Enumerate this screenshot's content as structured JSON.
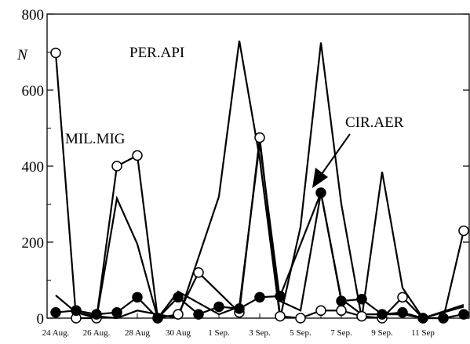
{
  "chart_data": {
    "type": "line",
    "ylabel": "N",
    "ylim": [
      0,
      800
    ],
    "yticks": [
      "0",
      "200",
      "400",
      "600",
      "800"
    ],
    "categories": [
      "24 Aug.",
      "26 Aug.",
      "28 Aug",
      "30 Aug",
      "1 Sep.",
      "3 Sep.",
      "5 Sep.",
      "7 Sep.",
      "9 Sep.",
      "11 Sep"
    ],
    "grid": false,
    "series": [
      {
        "name": "PER.API",
        "marker": "none",
        "points": [
          [
            0,
            60
          ],
          [
            0.5,
            15
          ],
          [
            1,
            5
          ],
          [
            1.5,
            0
          ],
          [
            2,
            20
          ],
          [
            3,
            0
          ],
          [
            4,
            320
          ],
          [
            4.5,
            730
          ],
          [
            5,
            420
          ],
          [
            5.5,
            0
          ],
          [
            6,
            240
          ],
          [
            6.5,
            725
          ],
          [
            7,
            300
          ],
          [
            7.5,
            0
          ],
          [
            8,
            385
          ],
          [
            8.5,
            80
          ],
          [
            9,
            0
          ],
          [
            10,
            35
          ]
        ]
      },
      {
        "name": "MIL.MIG",
        "marker": "none",
        "points": [
          [
            0.5,
            15
          ],
          [
            1,
            0
          ],
          [
            1.5,
            315
          ],
          [
            2,
            195
          ],
          [
            2.5,
            0
          ],
          [
            3,
            70
          ],
          [
            4,
            10
          ],
          [
            4.5,
            30
          ],
          [
            5,
            460
          ],
          [
            5.5,
            45
          ],
          [
            6,
            20
          ],
          [
            6.5,
            330
          ],
          [
            7,
            50
          ],
          [
            7.5,
            10
          ],
          [
            8,
            10
          ],
          [
            8.5,
            10
          ],
          [
            9,
            0
          ],
          [
            10,
            30
          ]
        ]
      },
      {
        "name": "",
        "marker": "open-circle",
        "points": [
          [
            0,
            698
          ],
          [
            0.5,
            0
          ],
          [
            1,
            0
          ],
          [
            1.5,
            400
          ],
          [
            2,
            428
          ],
          [
            2.5,
            0
          ],
          [
            3,
            10
          ],
          [
            3.5,
            120
          ],
          [
            4.5,
            15
          ],
          [
            5,
            475
          ],
          [
            5.5,
            5
          ],
          [
            6,
            0
          ],
          [
            6.5,
            20
          ],
          [
            7,
            20
          ],
          [
            7.5,
            5
          ],
          [
            8,
            0
          ],
          [
            8.5,
            55
          ],
          [
            9,
            0
          ],
          [
            9.5,
            0
          ],
          [
            10,
            230
          ]
        ]
      },
      {
        "name": "CIR.AER",
        "marker": "filled-circle",
        "points": [
          [
            0,
            15
          ],
          [
            0.5,
            20
          ],
          [
            1,
            10
          ],
          [
            1.5,
            15
          ],
          [
            2,
            55
          ],
          [
            2.5,
            0
          ],
          [
            3,
            55
          ],
          [
            3.5,
            10
          ],
          [
            4,
            30
          ],
          [
            4.5,
            25
          ],
          [
            5,
            55
          ],
          [
            5.5,
            58
          ],
          [
            6.5,
            330
          ],
          [
            7,
            45
          ],
          [
            7.5,
            50
          ],
          [
            8,
            10
          ],
          [
            8.5,
            15
          ],
          [
            9,
            0
          ],
          [
            9.5,
            0
          ],
          [
            10,
            10
          ]
        ]
      }
    ],
    "annotations": [
      {
        "text": "PER.API",
        "target_series": "PER.API"
      },
      {
        "text": "MIL.MIG",
        "target_series": "MIL.MIG"
      },
      {
        "text": "CIR.AER",
        "target_series": "CIR.AER",
        "arrow": true
      }
    ]
  }
}
